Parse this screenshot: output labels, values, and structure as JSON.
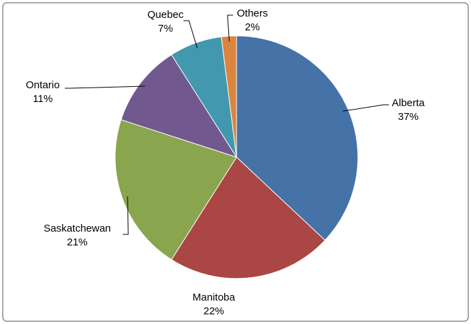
{
  "chart_data": {
    "type": "pie",
    "categories": [
      "Alberta",
      "Manitoba",
      "Saskatchewan",
      "Ontario",
      "Quebec",
      "Others"
    ],
    "values": [
      37,
      22,
      21,
      11,
      7,
      2
    ],
    "value_labels": [
      "37%",
      "22%",
      "21%",
      "11%",
      "7%",
      "2%"
    ],
    "colors": [
      "#4572a7",
      "#aa4643",
      "#89a54e",
      "#71588f",
      "#4198af",
      "#db843d"
    ]
  }
}
